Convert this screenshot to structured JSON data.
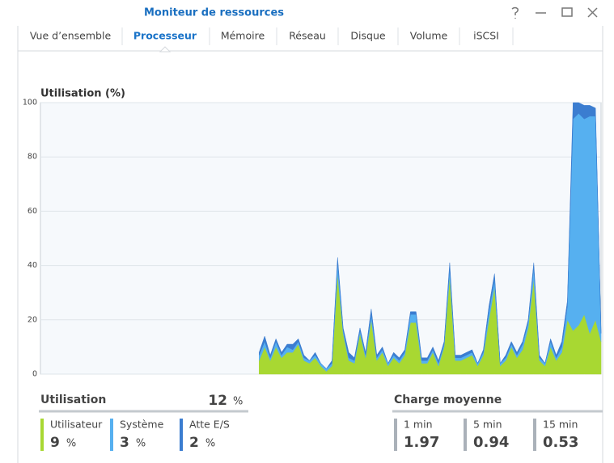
{
  "window": {
    "title": "Moniteur de ressources"
  },
  "tabs": [
    {
      "label": "Vue d’ensemble",
      "active": false
    },
    {
      "label": "Processeur",
      "active": true
    },
    {
      "label": "Mémoire",
      "active": false
    },
    {
      "label": "Réseau",
      "active": false
    },
    {
      "label": "Disque",
      "active": false
    },
    {
      "label": "Volume",
      "active": false
    },
    {
      "label": "iSCSI",
      "active": false
    }
  ],
  "chart_data": {
    "type": "stacked_area",
    "title": "Utilisation (%)",
    "ylim": [
      0,
      100
    ],
    "yticks": [
      0,
      20,
      40,
      60,
      80,
      100
    ],
    "grid": true,
    "series": [
      {
        "name": "Utilisateur",
        "color": "#a8d832",
        "values": [
          null,
          null,
          null,
          null,
          null,
          null,
          null,
          null,
          null,
          null,
          null,
          null,
          null,
          null,
          null,
          null,
          null,
          null,
          null,
          null,
          null,
          null,
          null,
          null,
          null,
          null,
          null,
          null,
          null,
          null,
          null,
          null,
          null,
          null,
          null,
          null,
          null,
          null,
          null,
          5,
          10,
          5,
          10,
          6,
          8,
          8,
          11,
          5,
          4,
          6,
          3,
          1,
          3,
          37,
          15,
          5,
          4,
          15,
          6,
          20,
          5,
          8,
          3,
          6,
          4,
          7,
          19,
          19,
          4,
          4,
          8,
          3,
          10,
          36,
          5,
          5,
          6,
          7,
          3,
          7,
          20,
          32,
          3,
          5,
          10,
          6,
          9,
          17,
          35,
          5,
          3,
          10,
          5,
          8,
          20,
          16,
          18,
          22,
          15,
          20,
          12
        ]
      },
      {
        "name": "Système",
        "color": "#56b0f0",
        "values": [
          null,
          null,
          null,
          null,
          null,
          null,
          null,
          null,
          null,
          null,
          null,
          null,
          null,
          null,
          null,
          null,
          null,
          null,
          null,
          null,
          null,
          null,
          null,
          null,
          null,
          null,
          null,
          null,
          null,
          null,
          null,
          null,
          null,
          null,
          null,
          null,
          null,
          null,
          null,
          2,
          2,
          1,
          2,
          1,
          2,
          1,
          1,
          1,
          1,
          1,
          1,
          1,
          1,
          4,
          1,
          1,
          1,
          1,
          1,
          2,
          1,
          1,
          1,
          1,
          1,
          1,
          3,
          3,
          1,
          1,
          1,
          1,
          1,
          3,
          1,
          1,
          1,
          1,
          1,
          1,
          3,
          3,
          1,
          1,
          1,
          1,
          2,
          2,
          4,
          1,
          1,
          2,
          1,
          2,
          5,
          78,
          78,
          72,
          80,
          75,
          3
        ]
      },
      {
        "name": "Atte E/S",
        "color": "#3b7dd0",
        "values": [
          null,
          null,
          null,
          null,
          null,
          null,
          null,
          null,
          null,
          null,
          null,
          null,
          null,
          null,
          null,
          null,
          null,
          null,
          null,
          null,
          null,
          null,
          null,
          null,
          null,
          null,
          null,
          null,
          null,
          null,
          null,
          null,
          null,
          null,
          null,
          null,
          null,
          null,
          null,
          1,
          2,
          1,
          1,
          1,
          1,
          2,
          1,
          1,
          0,
          1,
          0,
          0,
          1,
          2,
          1,
          2,
          1,
          1,
          1,
          2,
          1,
          1,
          0,
          1,
          1,
          1,
          1,
          1,
          1,
          1,
          1,
          1,
          1,
          2,
          1,
          1,
          1,
          1,
          0,
          1,
          2,
          2,
          0,
          1,
          1,
          1,
          1,
          1,
          2,
          1,
          0,
          1,
          1,
          2,
          2,
          6,
          4,
          5,
          4,
          3,
          1
        ]
      }
    ]
  },
  "usage": {
    "title": "Utilisation",
    "total": 12,
    "unit": "%",
    "values": [
      9,
      3,
      2
    ]
  },
  "load": {
    "title": "Charge moyenne",
    "items": [
      {
        "label": "1 min",
        "value": 1.97
      },
      {
        "label": "5 min",
        "value": 0.94
      },
      {
        "label": "15 min",
        "value": 0.53
      }
    ]
  }
}
